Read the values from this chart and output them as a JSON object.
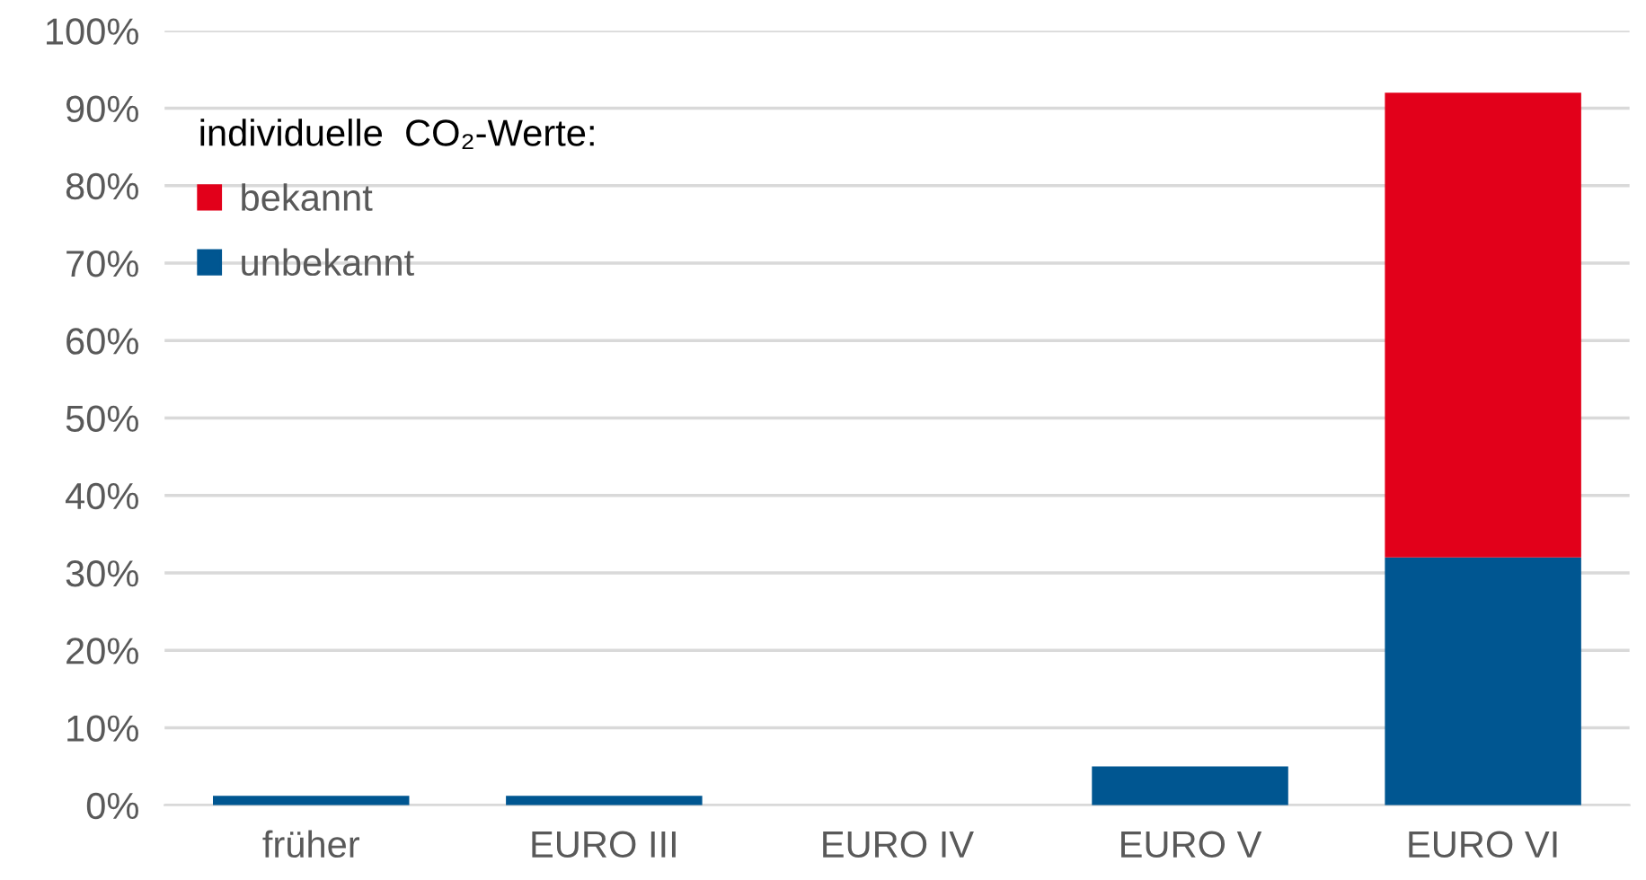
{
  "chart_data": {
    "type": "bar",
    "stacked": true,
    "categories": [
      "früher",
      "EURO III",
      "EURO IV",
      "EURO V",
      "EURO VI"
    ],
    "series": [
      {
        "name": "unbekannt",
        "color": "#005691",
        "values": [
          1.2,
          1.2,
          0,
          5,
          32
        ]
      },
      {
        "name": "bekannt",
        "color": "#e2001a",
        "values": [
          0,
          0,
          0,
          0,
          60
        ]
      }
    ],
    "legend_title": "individuelle  CO₂-Werte:",
    "legend": "top left",
    "ylim": [
      0,
      100
    ],
    "yticks": [
      {
        "value": 0,
        "label": "0%"
      },
      {
        "value": 10,
        "label": "10%"
      },
      {
        "value": 20,
        "label": "20%"
      },
      {
        "value": 30,
        "label": "30%"
      },
      {
        "value": 40,
        "label": "40%"
      },
      {
        "value": 50,
        "label": "50%"
      },
      {
        "value": 60,
        "label": "60%"
      },
      {
        "value": 70,
        "label": "70%"
      },
      {
        "value": 80,
        "label": "80%"
      },
      {
        "value": 90,
        "label": "90%"
      },
      {
        "value": 100,
        "label": "100%"
      }
    ],
    "grid": "y"
  }
}
